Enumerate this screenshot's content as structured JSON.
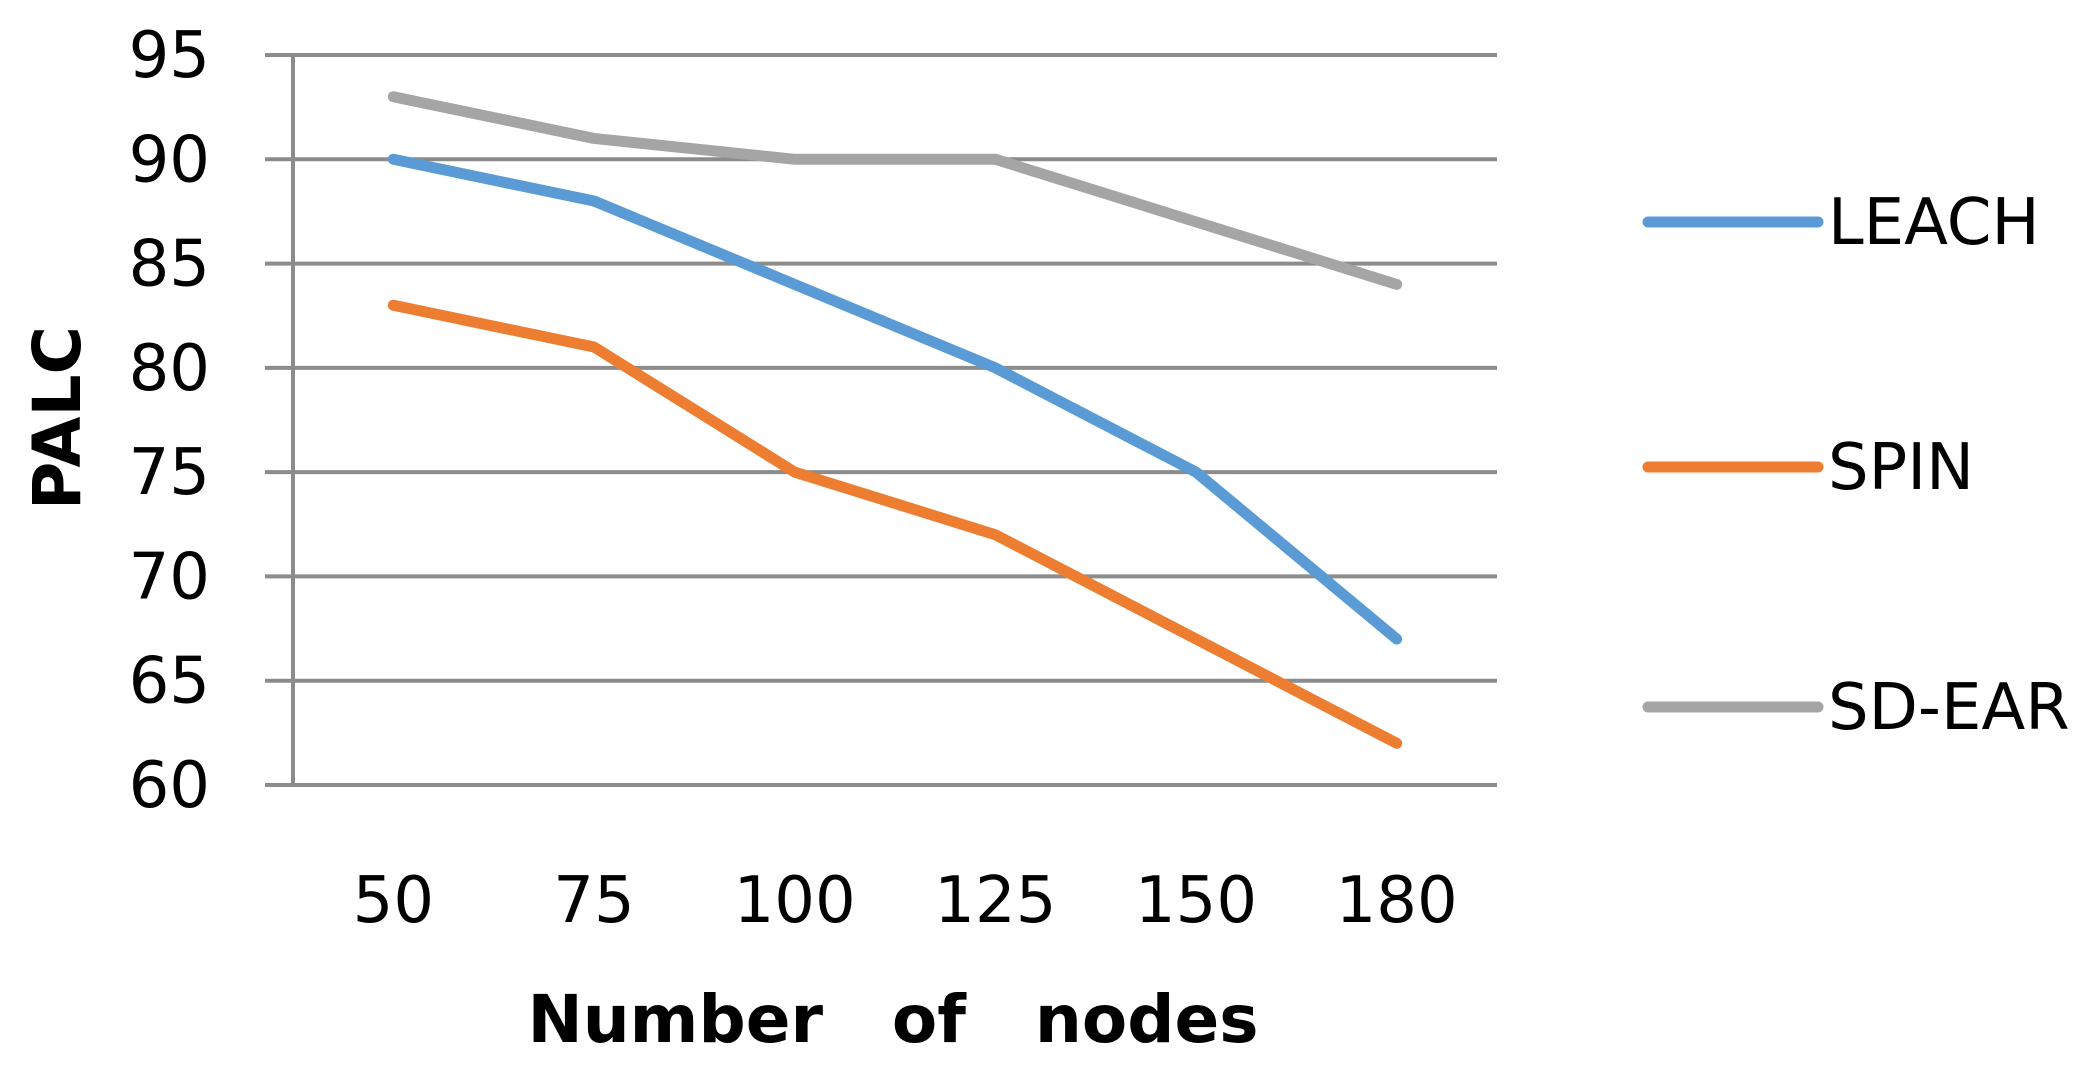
{
  "chart_data": {
    "type": "line",
    "title": "",
    "xlabel": "Number   of   nodes",
    "ylabel": "PALC",
    "categories": [
      "50",
      "75",
      "100",
      "125",
      "150",
      "180"
    ],
    "ylim": [
      60,
      95
    ],
    "yticks": [
      60,
      65,
      70,
      75,
      80,
      85,
      90,
      95
    ],
    "grid": true,
    "legend_position": "right",
    "series": [
      {
        "name": "LEACH",
        "color": "#5b9bd5",
        "values": [
          90,
          88,
          84,
          80,
          75,
          67
        ]
      },
      {
        "name": "SPIN",
        "color": "#ed7d31",
        "values": [
          83,
          81,
          75,
          72,
          67,
          62
        ]
      },
      {
        "name": "SD-EAR",
        "color": "#a5a5a5",
        "values": [
          93,
          91,
          90,
          90,
          87,
          84
        ]
      }
    ]
  }
}
